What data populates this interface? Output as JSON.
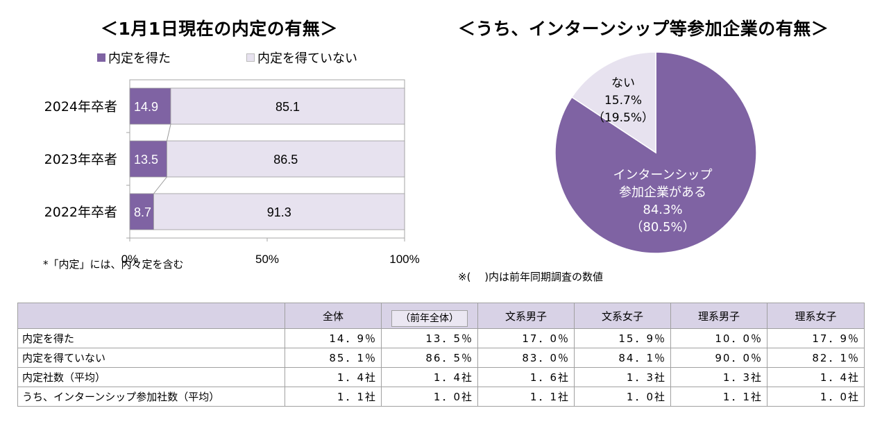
{
  "colors": {
    "accent": "#7f63a3",
    "light": "#e7e2ef",
    "header": "#d8d2e6"
  },
  "left_title": "＜1月1日現在の内定の有無＞",
  "right_title": "＜うち、インターンシップ等参加企業の有無＞",
  "legend": [
    "内定を得た",
    "内定を得ていない"
  ],
  "note_left": "*「内定」には、内々定を含む",
  "note_right": "※(　 )内は前年同期調査の数値",
  "chart_data": [
    {
      "type": "bar",
      "orientation": "horizontal-stacked-100",
      "title": "＜1月1日現在の内定の有無＞",
      "categories": [
        "2024年卒者",
        "2023年卒者",
        "2022年卒者"
      ],
      "series": [
        {
          "name": "内定を得た",
          "color": "#7f63a3",
          "values": [
            14.9,
            13.5,
            8.7
          ],
          "labels": [
            "14.9",
            "13.5",
            "8.7"
          ]
        },
        {
          "name": "内定を得ていない",
          "color": "#e7e2ef",
          "values": [
            85.1,
            86.5,
            91.3
          ],
          "labels": [
            "85.1",
            "86.5",
            "91.3"
          ]
        }
      ],
      "xlim": [
        0,
        100
      ],
      "xticks": [
        "0%",
        "50%",
        "100%"
      ],
      "legend_position": "top",
      "series_lines": true
    },
    {
      "type": "pie",
      "title": "＜うち、インターンシップ等参加企業の有無＞",
      "slices": [
        {
          "label_lines": [
            "インターンシップ",
            "参加企業がある"
          ],
          "value": 84.3,
          "value_text": "84.3%",
          "prev_text": "（80.5%）",
          "color": "#7f63a3"
        },
        {
          "label_lines": [
            "ない"
          ],
          "value": 15.7,
          "value_text": "15.7%",
          "prev_text": "（19.5%）",
          "color": "#e7e2ef"
        }
      ]
    },
    {
      "type": "table",
      "header": [
        "全体",
        "（前年全体）",
        "文系男子",
        "文系女子",
        "理系男子",
        "理系女子"
      ],
      "rows": [
        {
          "label": "内定を得た",
          "values": [
            "14．9％",
            "13．5％",
            "17．0％",
            "15．9％",
            "10．0％",
            "17．9％"
          ]
        },
        {
          "label": "内定を得ていない",
          "values": [
            "85．1％",
            "86．5％",
            "83．0％",
            "84．1％",
            "90．0％",
            "82．1％"
          ]
        },
        {
          "label": "内定社数（平均）",
          "values": [
            "1．4社",
            "1．4社",
            "1．6社",
            "1．3社",
            "1．3社",
            "1．4社"
          ]
        },
        {
          "label": "うち、インターンシップ参加社数（平均）",
          "values": [
            "1．1社",
            "1．0社",
            "1．1社",
            "1．0社",
            "1．1社",
            "1．0社"
          ]
        }
      ]
    }
  ]
}
